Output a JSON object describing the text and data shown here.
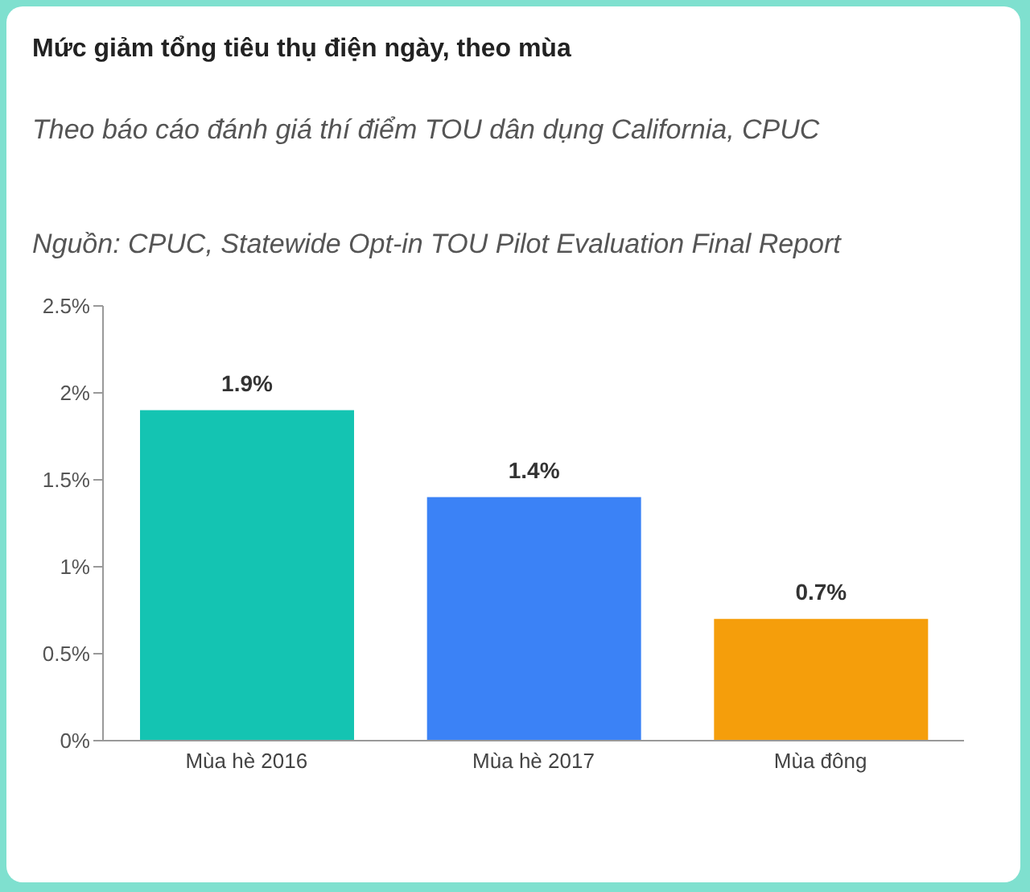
{
  "chart_data": {
    "type": "bar",
    "title": "Mức giảm tổng tiêu thụ điện ngày, theo mùa",
    "subtitle": "Theo báo cáo đánh giá thí điểm TOU dân dụng California, CPUC",
    "annotations": [
      "Nguồn: CPUC, Statewide Opt-in TOU Pilot Evaluation Final Report"
    ],
    "categories": [
      "Mùa hè 2016",
      "Mùa hè 2017",
      "Mùa đông"
    ],
    "values": [
      1.9,
      1.4,
      0.7
    ],
    "colors": [
      "#14c4b2",
      "#3b82f6",
      "#f59e0b"
    ],
    "value_labels": [
      "1.9%",
      "1.4%",
      "0.7%"
    ],
    "ylim": [
      0,
      2.5
    ],
    "yticks": [
      {
        "value": 0,
        "label": "0%"
      },
      {
        "value": 0.5,
        "label": "0.5%"
      },
      {
        "value": 1,
        "label": "1%"
      },
      {
        "value": 1.5,
        "label": "1.5%"
      },
      {
        "value": 2,
        "label": "2%"
      },
      {
        "value": 2.5,
        "label": "2.5%"
      }
    ],
    "grid": false,
    "legend": false
  }
}
